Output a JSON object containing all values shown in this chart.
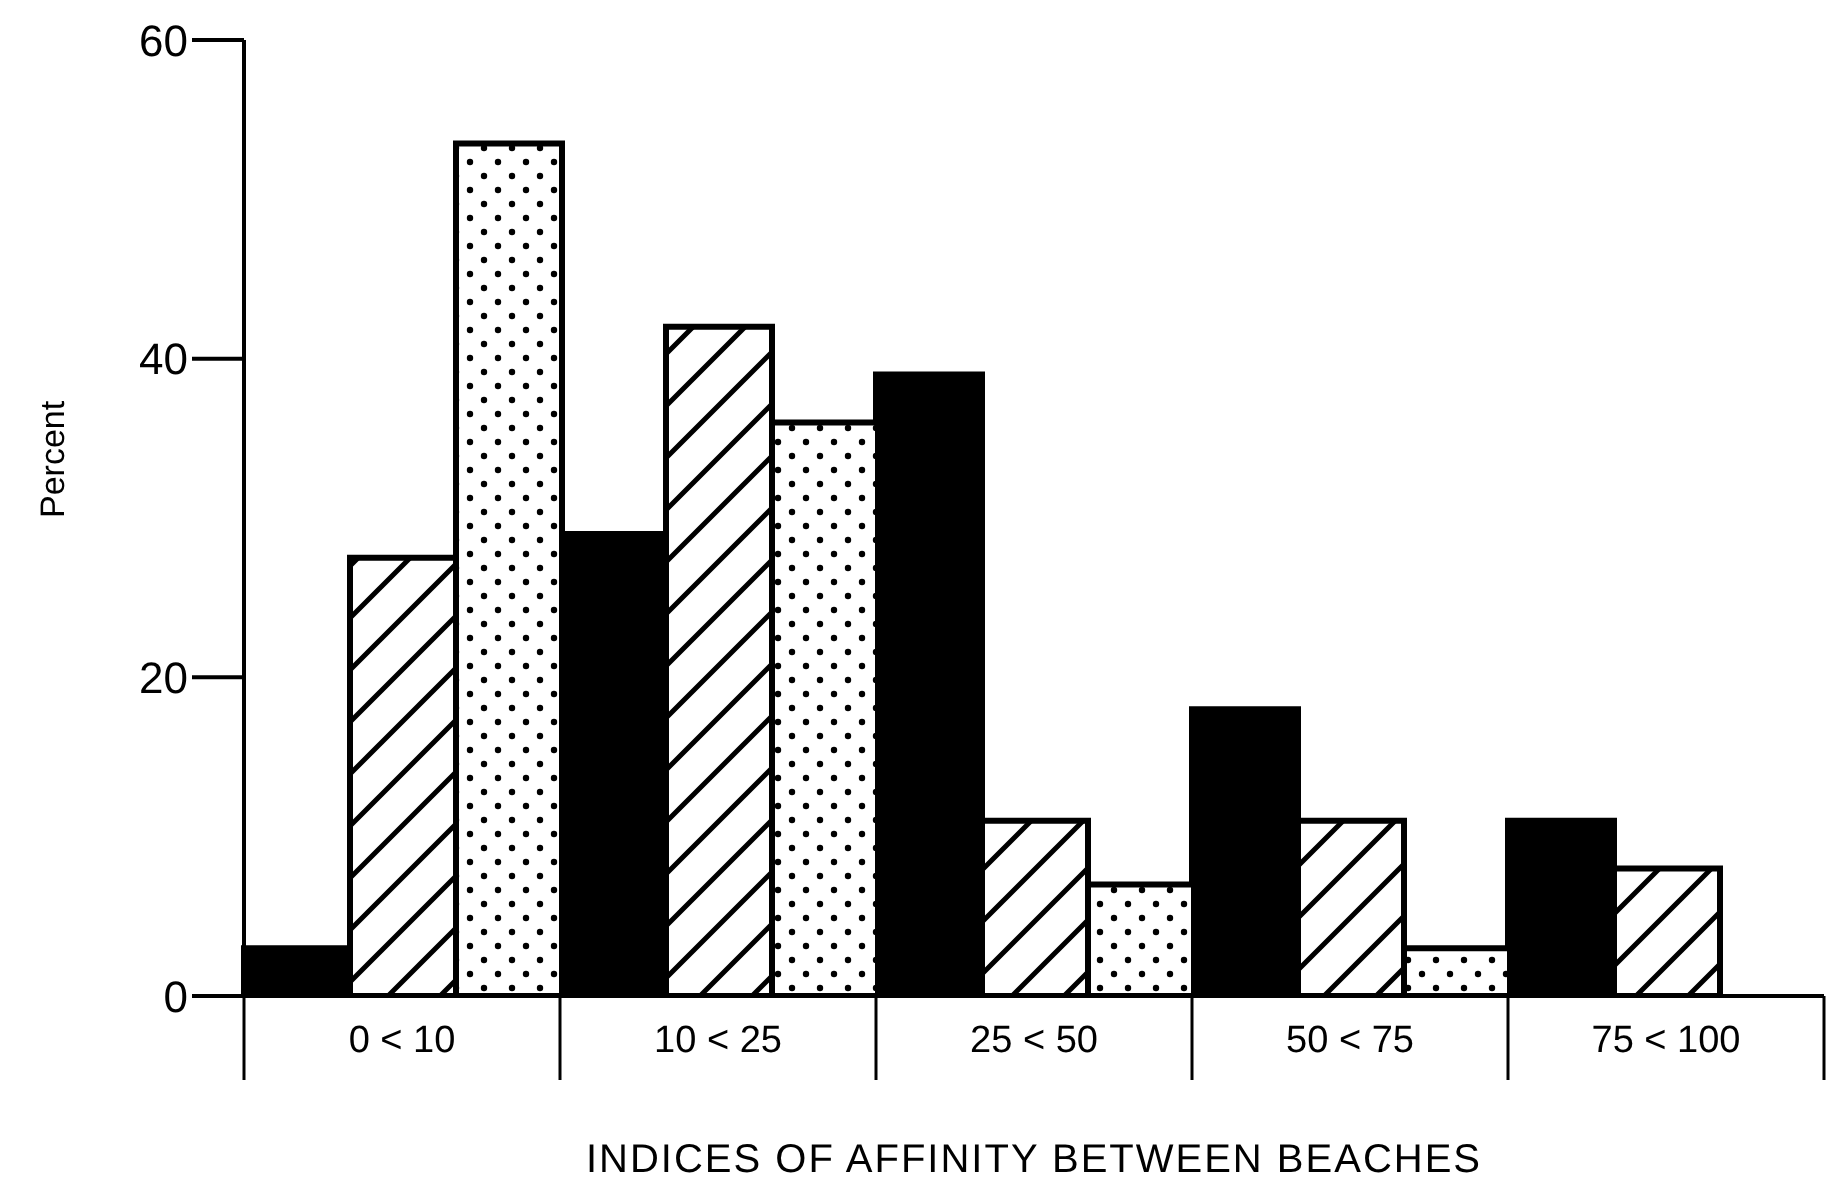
{
  "chart_data": {
    "type": "bar",
    "xlabel": "INDICES OF AFFINITY BETWEEN BEACHES",
    "ylabel": "Percent",
    "categories": [
      "0 < 10",
      "10 < 25",
      "25 < 50",
      "50 < 75",
      "75 < 100"
    ],
    "series": [
      {
        "color": "#000000",
        "values": [
          3,
          29,
          39,
          18,
          11
        ]
      },
      {
        "color": "#000000",
        "values": [
          27.5,
          42,
          11,
          11,
          8
        ]
      },
      {
        "color": "#000000",
        "values": [
          53.5,
          36,
          7,
          3,
          null
        ]
      }
    ],
    "ylim": [
      0,
      60
    ],
    "yticks": [
      0,
      20,
      40,
      60
    ]
  }
}
